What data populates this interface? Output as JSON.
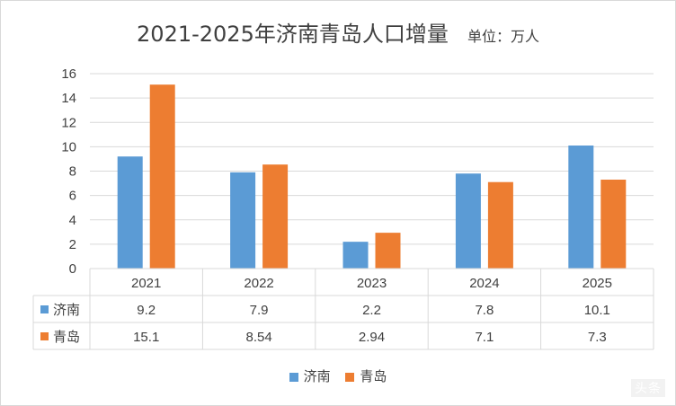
{
  "chart_data": {
    "type": "bar",
    "title": "2021-2025年济南青岛人口增量",
    "unit_label": "单位：万人",
    "categories": [
      "2021",
      "2022",
      "2023",
      "2024",
      "2025"
    ],
    "series": [
      {
        "name": "济南",
        "values": [
          "9.2",
          "7.9",
          "2.2",
          "7.8",
          "10.1"
        ],
        "color": "#5b9bd5"
      },
      {
        "name": "青岛",
        "values": [
          "15.1",
          "8.54",
          "2.94",
          "7.1",
          "7.3"
        ],
        "color": "#ed7d31"
      }
    ],
    "y_ticks": [
      "0",
      "2",
      "4",
      "6",
      "8",
      "10",
      "12",
      "14",
      "16"
    ],
    "ylim": [
      0,
      16
    ],
    "grid": true,
    "legend_position": "bottom",
    "data_table": true
  },
  "colors": {
    "grid": "#d9d9d9",
    "text": "#404040"
  },
  "watermark": "头条"
}
